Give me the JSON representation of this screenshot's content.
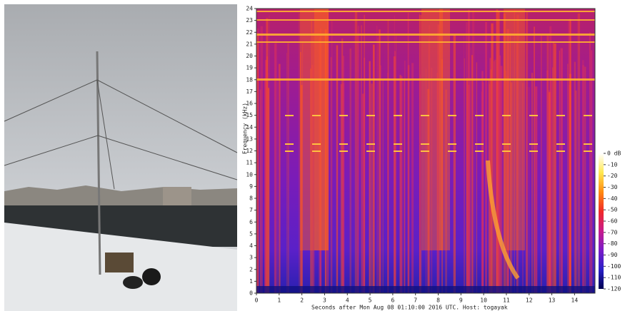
{
  "chart_data": {
    "type": "heatmap",
    "xlabel": "Seconds after Mon Aug 08 01:10:00 2016 UTC. Host: togayak",
    "ylabel": "Frequency (kHz)",
    "xlim": [
      0,
      14.9
    ],
    "xticks": [
      0,
      1,
      2,
      3,
      4,
      5,
      6,
      7,
      8,
      9,
      10,
      11,
      12,
      13,
      14
    ],
    "ylim": [
      0,
      24
    ],
    "yticks": [
      0,
      1,
      2,
      3,
      4,
      5,
      6,
      7,
      8,
      9,
      10,
      11,
      12,
      13,
      14,
      15,
      16,
      17,
      18,
      19,
      20,
      21,
      22,
      23,
      24
    ],
    "clim": [
      -120,
      0
    ],
    "cticks": [
      {
        "value": 0,
        "label": "0 dB"
      },
      -10,
      -20,
      -30,
      -40,
      -50,
      -60,
      -70,
      -80,
      -90,
      -100,
      -110,
      -120
    ],
    "colormap": [
      "#000050",
      "#2a20c8",
      "#7a1cc8",
      "#c81c8c",
      "#f02a28",
      "#ff8a10",
      "#ffe850",
      "#ffffff"
    ]
  }
}
